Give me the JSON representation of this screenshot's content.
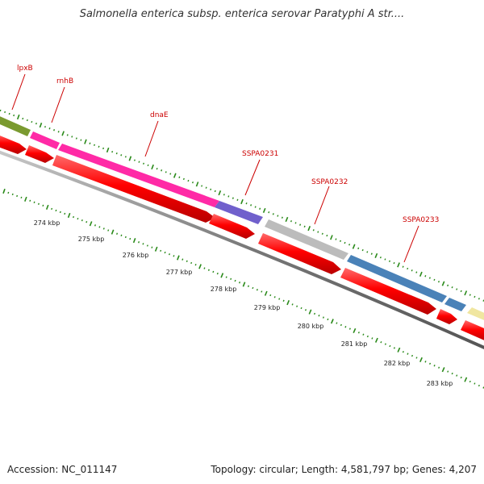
{
  "title": "Salmonella enterica subsp. enterica serovar Paratyphi A str....",
  "footer": {
    "accession": "Accession: NC_011147",
    "info": "Topology: circular; Length: 4,581,797 bp; Genes: 4,207"
  },
  "genes": [
    {
      "label": "lpxB"
    },
    {
      "label": "rnhB"
    },
    {
      "label": "dnaE"
    },
    {
      "label": "SSPA0231"
    },
    {
      "label": "SSPA0232"
    },
    {
      "label": "SSPA0233"
    }
  ],
  "kbp_labels": [
    "274 kbp",
    "275 kbp",
    "276 kbp",
    "277 kbp",
    "278 kbp",
    "279 kbp",
    "280 kbp",
    "281 kbp",
    "282 kbp",
    "283 kbp"
  ],
  "colors": {
    "cds_strand": "#ff0000",
    "backbone": "#888888",
    "tick": "#2a8a1a",
    "label": "#cc0000",
    "gene_olive": "#7a9a30",
    "gene_pink": "#ff2aa6",
    "gene_purple": "#7060cc",
    "gene_gray": "#bcbcbc",
    "gene_blue": "#4a82b8",
    "gene_yellow": "#f0e6a0"
  }
}
